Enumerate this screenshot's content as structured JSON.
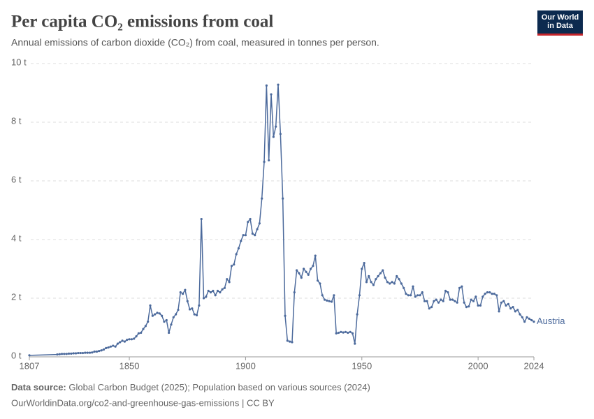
{
  "logo": "Our World in Data",
  "chart_data": {
    "type": "line",
    "title": "Per capita CO₂ emissions from coal",
    "subtitle": "Annual emissions of carbon dioxide (CO₂) from coal, measured in tonnes per person.",
    "source_label": "Data source:",
    "source": "Global Carbon Budget (2025); Population based on various sources (2024)",
    "footer": "OurWorldinData.org/co2-and-greenhouse-gas-emissions | CC BY",
    "xlim": [
      1807,
      2024
    ],
    "xticks": [
      1807,
      1850,
      1900,
      1950,
      2000,
      2024
    ],
    "ylim": [
      0,
      10
    ],
    "yticks": [
      {
        "value": 0,
        "label": "0 t"
      },
      {
        "value": 2,
        "label": "2 t"
      },
      {
        "value": 4,
        "label": "4 t"
      },
      {
        "value": 6,
        "label": "6 t"
      },
      {
        "value": 8,
        "label": "8 t"
      },
      {
        "value": 10,
        "label": "10 t"
      }
    ],
    "grid": true,
    "x": [
      1807,
      1819,
      1820,
      1821,
      1822,
      1823,
      1824,
      1825,
      1826,
      1827,
      1828,
      1829,
      1830,
      1831,
      1832,
      1833,
      1834,
      1835,
      1836,
      1837,
      1838,
      1839,
      1840,
      1841,
      1842,
      1843,
      1844,
      1845,
      1846,
      1847,
      1848,
      1849,
      1850,
      1851,
      1852,
      1853,
      1854,
      1855,
      1856,
      1857,
      1858,
      1859,
      1860,
      1861,
      1862,
      1863,
      1864,
      1865,
      1866,
      1867,
      1868,
      1869,
      1870,
      1871,
      1872,
      1873,
      1874,
      1875,
      1876,
      1877,
      1878,
      1879,
      1880,
      1881,
      1882,
      1883,
      1884,
      1885,
      1886,
      1887,
      1888,
      1889,
      1890,
      1891,
      1892,
      1893,
      1894,
      1895,
      1896,
      1897,
      1898,
      1899,
      1900,
      1901,
      1902,
      1903,
      1904,
      1905,
      1906,
      1907,
      1908,
      1909,
      1910,
      1911,
      1912,
      1913,
      1914,
      1915,
      1916,
      1917,
      1918,
      1919,
      1920,
      1921,
      1922,
      1923,
      1924,
      1925,
      1926,
      1927,
      1928,
      1929,
      1930,
      1931,
      1932,
      1933,
      1934,
      1935,
      1936,
      1937,
      1938,
      1939,
      1940,
      1941,
      1942,
      1943,
      1944,
      1945,
      1946,
      1947,
      1948,
      1949,
      1950,
      1951,
      1952,
      1953,
      1954,
      1955,
      1956,
      1957,
      1958,
      1959,
      1960,
      1961,
      1962,
      1963,
      1964,
      1965,
      1966,
      1967,
      1968,
      1969,
      1970,
      1971,
      1972,
      1973,
      1974,
      1975,
      1976,
      1977,
      1978,
      1979,
      1980,
      1981,
      1982,
      1983,
      1984,
      1985,
      1986,
      1987,
      1988,
      1989,
      1990,
      1991,
      1992,
      1993,
      1994,
      1995,
      1996,
      1997,
      1998,
      1999,
      2000,
      2001,
      2002,
      2003,
      2004,
      2005,
      2006,
      2007,
      2008,
      2009,
      2010,
      2011,
      2012,
      2013,
      2014,
      2015,
      2016,
      2017,
      2018,
      2019,
      2020,
      2021,
      2022,
      2023,
      2024
    ],
    "series": [
      {
        "name": "Austria",
        "color": "#4c6a9c",
        "values": [
          0.05,
          0.08,
          0.09,
          0.1,
          0.1,
          0.1,
          0.11,
          0.11,
          0.12,
          0.12,
          0.13,
          0.13,
          0.13,
          0.14,
          0.14,
          0.14,
          0.15,
          0.18,
          0.18,
          0.2,
          0.22,
          0.25,
          0.3,
          0.32,
          0.35,
          0.38,
          0.35,
          0.45,
          0.5,
          0.55,
          0.52,
          0.58,
          0.6,
          0.6,
          0.62,
          0.7,
          0.8,
          0.82,
          0.95,
          1.05,
          1.2,
          1.75,
          1.4,
          1.45,
          1.5,
          1.48,
          1.4,
          1.2,
          1.25,
          0.82,
          1.1,
          1.35,
          1.45,
          1.6,
          2.2,
          2.15,
          2.28,
          1.9,
          1.62,
          1.65,
          1.45,
          1.42,
          1.75,
          4.7,
          2.0,
          2.05,
          2.25,
          2.2,
          2.25,
          2.1,
          2.25,
          2.2,
          2.3,
          2.35,
          2.65,
          2.55,
          3.1,
          3.15,
          3.5,
          3.7,
          3.95,
          4.15,
          4.15,
          4.6,
          4.7,
          4.2,
          4.15,
          4.35,
          4.55,
          5.4,
          6.65,
          9.25,
          6.7,
          8.95,
          7.5,
          7.85,
          9.28,
          7.6,
          5.4,
          1.4,
          0.55,
          0.52,
          0.5,
          2.2,
          2.95,
          2.85,
          2.7,
          3.0,
          2.9,
          2.8,
          3.0,
          3.1,
          3.45,
          2.6,
          2.5,
          2.1,
          1.95,
          1.92,
          1.9,
          1.88,
          2.1,
          0.8,
          0.82,
          0.85,
          0.83,
          0.85,
          0.82,
          0.85,
          0.8,
          0.45,
          1.45,
          2.1,
          3.0,
          3.2,
          2.55,
          2.75,
          2.55,
          2.45,
          2.65,
          2.75,
          2.85,
          2.95,
          2.7,
          2.55,
          2.5,
          2.55,
          2.5,
          2.75,
          2.65,
          2.5,
          2.35,
          2.15,
          2.1,
          2.1,
          2.4,
          2.05,
          2.1,
          2.1,
          2.2,
          1.9,
          1.9,
          1.65,
          1.7,
          1.9,
          1.95,
          1.85,
          1.95,
          1.9,
          2.25,
          2.2,
          1.95,
          1.95,
          1.9,
          1.85,
          2.35,
          2.4,
          1.85,
          1.7,
          1.72,
          1.95,
          1.9,
          2.05,
          1.75,
          1.75,
          2.05,
          2.15,
          2.2,
          2.2,
          2.15,
          2.15,
          2.1,
          1.55,
          1.85,
          1.9,
          1.75,
          1.8,
          1.65,
          1.7,
          1.55,
          1.6,
          1.45,
          1.35,
          1.2,
          1.35,
          1.3,
          1.25,
          1.2
        ]
      }
    ]
  }
}
